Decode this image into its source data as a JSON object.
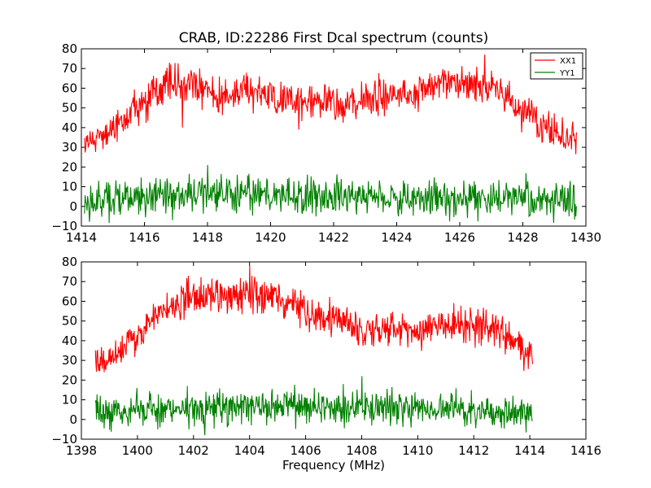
{
  "figure": {
    "title": "CRAB, ID:22286 First Dcal spectrum (counts)",
    "background": "#ffffff"
  },
  "legend": {
    "placement": "top-right of top panel",
    "entries": [
      {
        "label": "XX1",
        "color": "#ff0000"
      },
      {
        "label": "YY1",
        "color": "#008000"
      }
    ]
  },
  "chart_data": [
    {
      "type": "line",
      "panel": "top",
      "title": "CRAB, ID:22286 First Dcal spectrum (counts)",
      "xlabel": "",
      "ylabel": "",
      "xlim": [
        1414,
        1430
      ],
      "ylim": [
        -10,
        80
      ],
      "xticks": [
        1414,
        1416,
        1418,
        1420,
        1422,
        1424,
        1426,
        1428,
        1430
      ],
      "yticks": [
        -10,
        0,
        10,
        20,
        30,
        40,
        50,
        60,
        70,
        80
      ],
      "x_range": [
        1414.1,
        1429.7
      ],
      "n_points": 800,
      "series": [
        {
          "name": "XX1",
          "color": "#ff0000",
          "envelope_x": [
            1414.1,
            1414.5,
            1415.0,
            1415.5,
            1416.0,
            1416.5,
            1417.0,
            1417.5,
            1418.0,
            1418.5,
            1419.0,
            1419.5,
            1420.0,
            1420.5,
            1421.0,
            1421.5,
            1422.0,
            1422.5,
            1423.0,
            1423.5,
            1424.0,
            1424.5,
            1425.0,
            1425.5,
            1426.0,
            1426.5,
            1427.0,
            1427.5,
            1428.0,
            1428.5,
            1429.0,
            1429.7
          ],
          "envelope_y": [
            32,
            35,
            40,
            46,
            53,
            59,
            62,
            61,
            59,
            57,
            58,
            57,
            56,
            55,
            54,
            53,
            52,
            52,
            54,
            56,
            57,
            58,
            61,
            63,
            63,
            62,
            61,
            56,
            48,
            42,
            37,
            33
          ],
          "noise_amplitude": 5,
          "notable_points": [
            [
              1416.8,
              73
            ],
            [
              1417.2,
              40
            ],
            [
              1420.9,
              39
            ],
            [
              1426.8,
              77
            ]
          ]
        },
        {
          "name": "YY1",
          "color": "#008000",
          "envelope_x": [
            1414.1,
            1415.0,
            1416.0,
            1417.0,
            1418.0,
            1419.0,
            1420.0,
            1421.0,
            1422.0,
            1423.0,
            1424.0,
            1425.0,
            1426.0,
            1427.0,
            1428.0,
            1429.0,
            1429.7
          ],
          "envelope_y": [
            3,
            4,
            5,
            6,
            6,
            6,
            6,
            5,
            5,
            5,
            4,
            4,
            4,
            4,
            4,
            3,
            3
          ],
          "noise_amplitude": 5,
          "notable_points": [
            [
              1418.0,
              21
            ],
            [
              1416.9,
              -7
            ]
          ]
        }
      ]
    },
    {
      "type": "line",
      "panel": "bottom",
      "title": "",
      "xlabel": "Frequency (MHz)",
      "ylabel": "",
      "xlim": [
        1398,
        1416
      ],
      "ylim": [
        -10,
        80
      ],
      "xticks": [
        1398,
        1400,
        1402,
        1404,
        1406,
        1408,
        1410,
        1412,
        1414,
        1416
      ],
      "yticks": [
        -10,
        0,
        10,
        20,
        30,
        40,
        50,
        60,
        70,
        80
      ],
      "x_range": [
        1398.5,
        1414.1
      ],
      "n_points": 800,
      "series": [
        {
          "name": "XX1",
          "color": "#ff0000",
          "envelope_x": [
            1398.5,
            1399.0,
            1399.5,
            1400.0,
            1400.5,
            1401.0,
            1401.5,
            1402.0,
            1402.5,
            1403.0,
            1403.5,
            1404.0,
            1404.5,
            1405.0,
            1405.5,
            1406.0,
            1406.5,
            1407.0,
            1407.5,
            1408.0,
            1408.5,
            1409.0,
            1409.5,
            1410.0,
            1410.5,
            1411.0,
            1411.5,
            1412.0,
            1412.5,
            1413.0,
            1413.5,
            1414.1
          ],
          "envelope_y": [
            30,
            32,
            36,
            42,
            50,
            56,
            60,
            62,
            63,
            63,
            63,
            64,
            63,
            61,
            58,
            55,
            53,
            50,
            49,
            47,
            46,
            45,
            45,
            45,
            46,
            47,
            48,
            48,
            47,
            45,
            40,
            33
          ],
          "noise_amplitude": 5,
          "notable_points": [
            [
              1404.0,
              78
            ]
          ]
        },
        {
          "name": "YY1",
          "color": "#008000",
          "envelope_x": [
            1398.5,
            1399.5,
            1400.5,
            1401.5,
            1402.5,
            1403.5,
            1404.5,
            1405.5,
            1406.5,
            1407.5,
            1408.5,
            1409.5,
            1410.5,
            1411.5,
            1412.5,
            1413.5,
            1414.1
          ],
          "envelope_y": [
            4,
            4,
            5,
            6,
            6,
            6,
            7,
            7,
            7,
            6,
            6,
            5,
            5,
            5,
            4,
            4,
            3
          ],
          "noise_amplitude": 5,
          "notable_points": [
            [
              1408.0,
              22
            ],
            [
              1402.4,
              -8
            ]
          ]
        }
      ]
    }
  ]
}
